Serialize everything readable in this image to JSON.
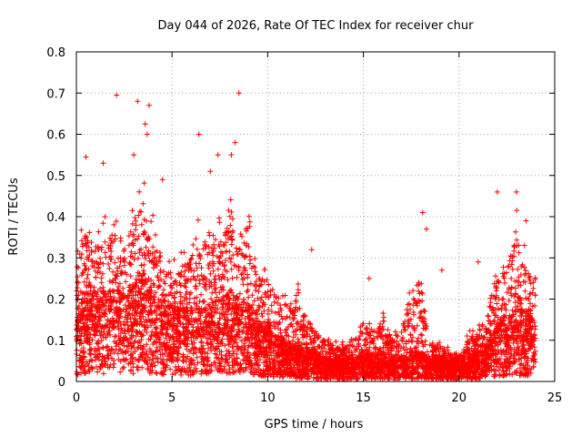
{
  "chart_data": {
    "type": "scatter",
    "title": "Day 044 of 2026, Rate Of TEC Index for receiver chur",
    "xlabel": "GPS time / hours",
    "ylabel": "ROTI / TECUs",
    "xlim": [
      0,
      25
    ],
    "ylim": [
      0,
      0.8
    ],
    "xticks": [
      0,
      5,
      10,
      15,
      20,
      25
    ],
    "xtick_labels": [
      "0",
      "5",
      "10",
      "15",
      "20",
      "25"
    ],
    "yticks": [
      0,
      0.1,
      0.2,
      0.3,
      0.4,
      0.5,
      0.6,
      0.7,
      0.8
    ],
    "ytick_labels": [
      "0",
      "0.1",
      "0.2",
      "0.3",
      "0.4",
      "0.5",
      "0.6",
      "0.7",
      "0.8"
    ],
    "grid": true,
    "marker": "+",
    "color": "#ff0000",
    "envelope": {
      "hours": [
        0,
        0.5,
        1,
        1.5,
        2,
        2.5,
        3,
        3.5,
        4,
        4.5,
        5,
        5.5,
        6,
        6.5,
        7,
        7.5,
        8,
        8.5,
        9,
        9.5,
        10,
        10.5,
        11,
        11.5,
        12,
        12.5,
        13,
        13.5,
        14,
        14.5,
        15,
        15.5,
        16,
        16.5,
        17,
        17.5,
        18,
        18.5,
        19,
        19.5,
        20,
        20.5,
        21,
        21.5,
        22,
        22.5,
        23,
        23.5,
        24
      ],
      "typical_max": [
        0.35,
        0.42,
        0.38,
        0.4,
        0.42,
        0.4,
        0.47,
        0.5,
        0.42,
        0.35,
        0.3,
        0.32,
        0.35,
        0.42,
        0.38,
        0.4,
        0.45,
        0.42,
        0.45,
        0.3,
        0.28,
        0.25,
        0.22,
        0.25,
        0.18,
        0.15,
        0.12,
        0.1,
        0.1,
        0.12,
        0.18,
        0.12,
        0.2,
        0.12,
        0.15,
        0.25,
        0.3,
        0.12,
        0.1,
        0.08,
        0.07,
        0.12,
        0.15,
        0.18,
        0.35,
        0.32,
        0.42,
        0.32,
        0.28
      ],
      "typical_median": [
        0.1,
        0.12,
        0.12,
        0.12,
        0.12,
        0.12,
        0.13,
        0.14,
        0.12,
        0.11,
        0.1,
        0.1,
        0.1,
        0.11,
        0.1,
        0.11,
        0.12,
        0.11,
        0.11,
        0.08,
        0.07,
        0.06,
        0.05,
        0.05,
        0.04,
        0.04,
        0.03,
        0.03,
        0.03,
        0.03,
        0.04,
        0.03,
        0.04,
        0.03,
        0.03,
        0.04,
        0.04,
        0.03,
        0.03,
        0.025,
        0.025,
        0.03,
        0.04,
        0.05,
        0.08,
        0.09,
        0.1,
        0.09,
        0.08
      ]
    },
    "notable_points": [
      {
        "x": 2.1,
        "y": 0.695
      },
      {
        "x": 3.2,
        "y": 0.68
      },
      {
        "x": 3.8,
        "y": 0.67
      },
      {
        "x": 8.5,
        "y": 0.7
      },
      {
        "x": 3.6,
        "y": 0.625
      },
      {
        "x": 6.4,
        "y": 0.6
      },
      {
        "x": 8.3,
        "y": 0.58
      },
      {
        "x": 3.7,
        "y": 0.6
      },
      {
        "x": 0.5,
        "y": 0.545
      },
      {
        "x": 1.4,
        "y": 0.53
      },
      {
        "x": 3.0,
        "y": 0.55
      },
      {
        "x": 7.4,
        "y": 0.55
      },
      {
        "x": 8.1,
        "y": 0.55
      },
      {
        "x": 7.0,
        "y": 0.51
      },
      {
        "x": 4.5,
        "y": 0.49
      },
      {
        "x": 12.3,
        "y": 0.32
      },
      {
        "x": 15.3,
        "y": 0.25
      },
      {
        "x": 18.1,
        "y": 0.41
      },
      {
        "x": 18.3,
        "y": 0.37
      },
      {
        "x": 19.1,
        "y": 0.27
      },
      {
        "x": 21.0,
        "y": 0.29
      },
      {
        "x": 22.0,
        "y": 0.46
      },
      {
        "x": 23.0,
        "y": 0.46
      },
      {
        "x": 23.5,
        "y": 0.39
      }
    ]
  }
}
